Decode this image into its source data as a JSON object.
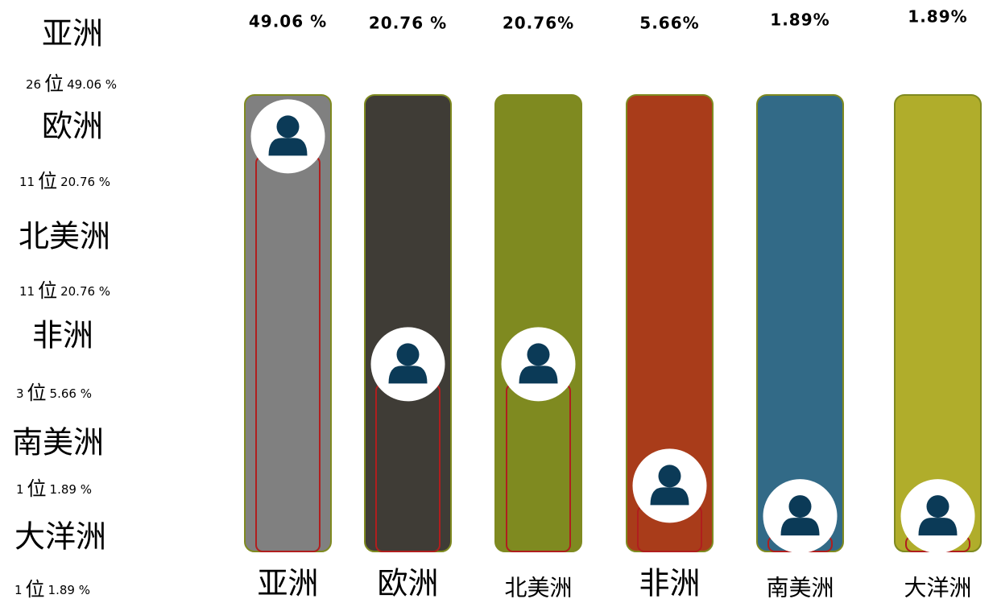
{
  "chart_data": {
    "type": "bar",
    "categories": [
      "亚洲",
      "欧洲",
      "北美洲",
      "非洲",
      "南美洲",
      "大洋洲"
    ],
    "values": [
      49.06,
      20.76,
      20.76,
      5.66,
      1.89,
      1.89
    ],
    "value_labels": [
      "49.06 %",
      "20.76 %",
      "20.76%",
      "5.66%",
      "1.89%",
      "1.89%"
    ],
    "legend_value_labels": [
      "49.06 %",
      "20.76 %",
      "20.76 %",
      "5.66 %",
      "1.89 %",
      "1.89 %"
    ],
    "counts": [
      26,
      11,
      11,
      3,
      1,
      1
    ],
    "count_unit": "位",
    "colors": [
      "#808080",
      "#3f3c36",
      "#7f8a20",
      "#a93c1a",
      "#326a87",
      "#b0ad2b"
    ],
    "ylim": [
      0,
      56
    ]
  }
}
